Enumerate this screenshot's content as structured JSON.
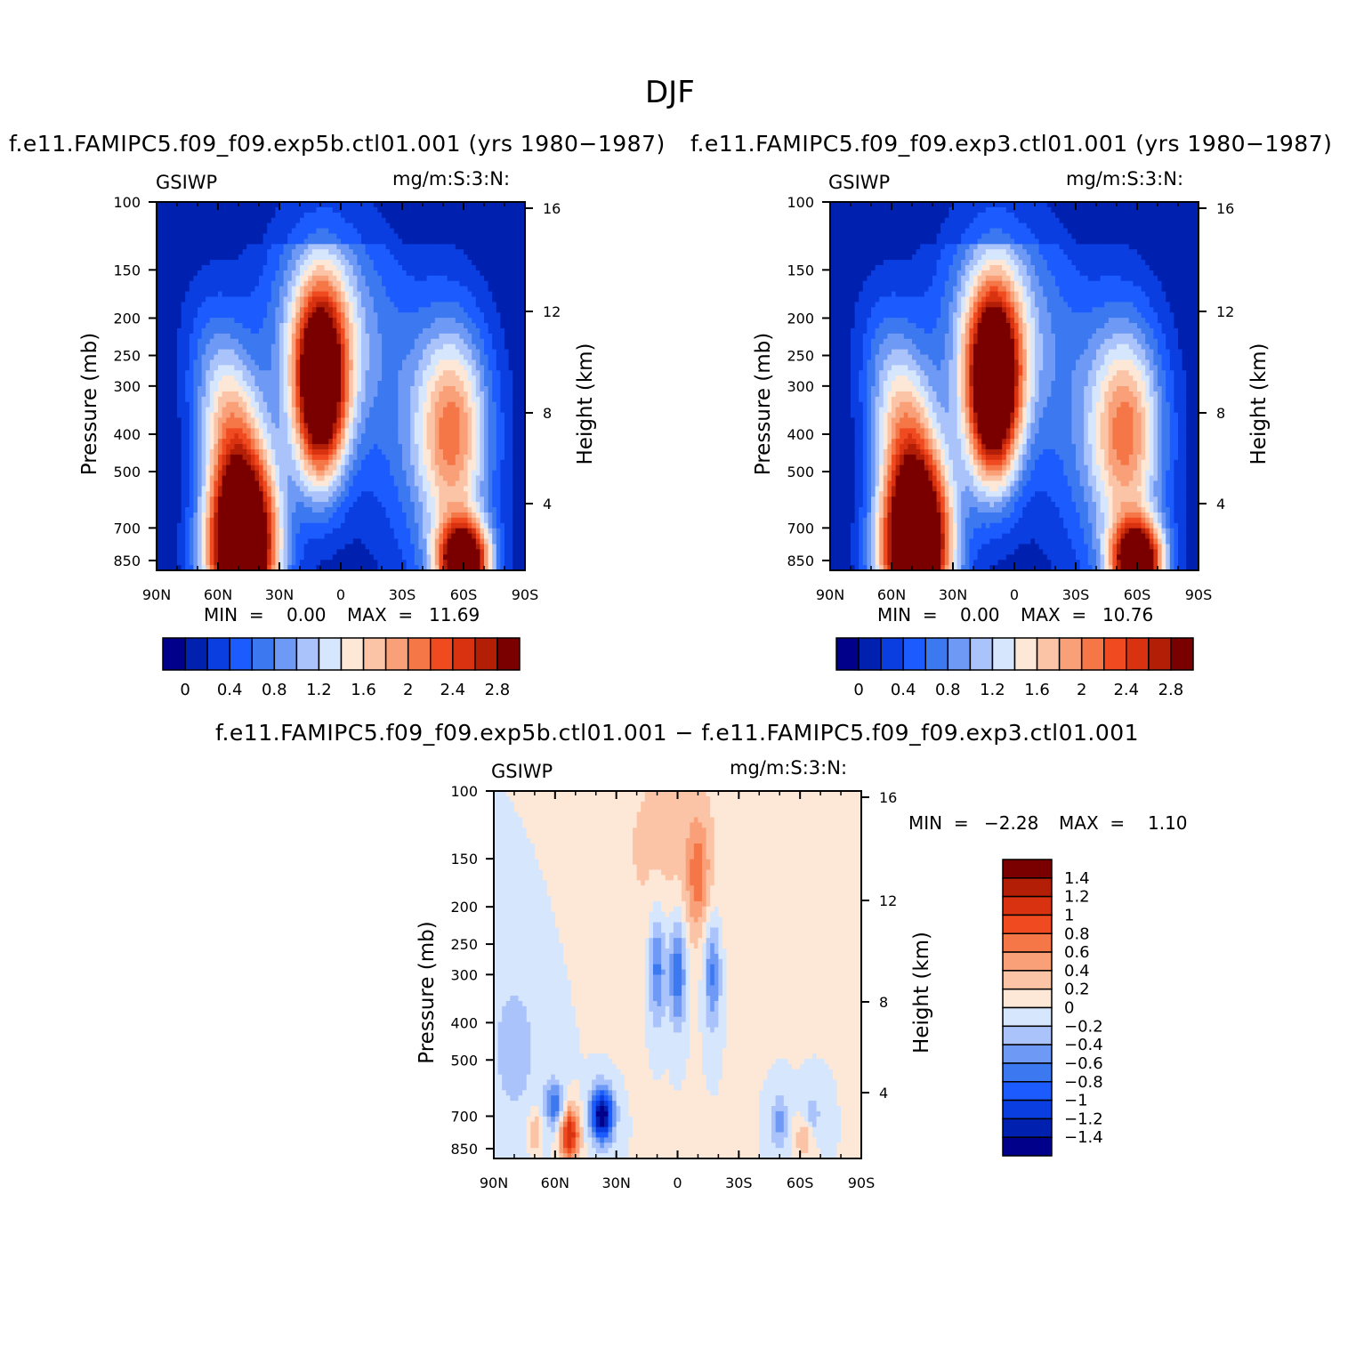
{
  "figure": {
    "title": "DJF",
    "diff_title": "f.e11.FAMIPC5.f09_f09.exp5b.ctl01.001  −  f.e11.FAMIPC5.f09_f09.exp3.ctl01.001"
  },
  "panels": [
    {
      "id": "exp5b",
      "subtitle": "f.e11.FAMIPC5.f09_f09.exp5b.ctl01.001  (yrs  1980−1987)",
      "left_label": "GSIWP",
      "right_label": "mg/m:S:3:N:",
      "min_label": "MIN  =",
      "min_value": "0.00",
      "max_label": "MAX  =",
      "max_value": "11.69"
    },
    {
      "id": "exp3",
      "subtitle": "f.e11.FAMIPC5.f09_f09.exp3.ctl01.001  (yrs  1980−1987)",
      "left_label": "GSIWP",
      "right_label": "mg/m:S:3:N:",
      "min_label": "MIN  =",
      "min_value": "0.00",
      "max_label": "MAX  =",
      "max_value": "10.76"
    },
    {
      "id": "diff",
      "subtitle": "",
      "left_label": "GSIWP",
      "right_label": "mg/m:S:3:N:",
      "min_label": "MIN  =",
      "min_value": "−2.28",
      "max_label": "MAX  =",
      "max_value": "1.10"
    }
  ],
  "axes": {
    "x_ticks": [
      "90N",
      "60N",
      "30N",
      "0",
      "30S",
      "60S",
      "90S"
    ],
    "y_ticks": [
      "100",
      "150",
      "200",
      "250",
      "300",
      "400",
      "500",
      "700",
      "850"
    ],
    "y_label": "Pressure  (mb)",
    "y2_ticks": [
      "16",
      "12",
      "8",
      "4"
    ],
    "y2_label": "Height  (km)"
  },
  "colorbars": {
    "main_labels": [
      "0",
      "0.4",
      "0.8",
      "1.2",
      "1.6",
      "2",
      "2.4",
      "2.8"
    ],
    "main_colors": [
      "#00008b",
      "#0021b0",
      "#0a3ee0",
      "#1c5cff",
      "#3c78f0",
      "#6e9af5",
      "#aac3fa",
      "#d6e6fc",
      "#fde8d8",
      "#fcc4a6",
      "#f9a078",
      "#f57748",
      "#f04a20",
      "#d93210",
      "#b21e06",
      "#7a0000"
    ],
    "diff_labels": [
      "1.4",
      "1.2",
      "1",
      "0.8",
      "0.6",
      "0.4",
      "0.2",
      "0",
      "−0.2",
      "−0.4",
      "−0.6",
      "−0.8",
      "−1",
      "−1.2",
      "−1.4"
    ],
    "diff_colors": [
      "#7a0000",
      "#b21e06",
      "#d93210",
      "#f04a20",
      "#f57748",
      "#f9a078",
      "#fcc4a6",
      "#fde8d8",
      "#d6e6fc",
      "#aac3fa",
      "#6e9af5",
      "#3c78f0",
      "#1c5cff",
      "#0a3ee0",
      "#0021b0",
      "#00008b"
    ]
  },
  "chart_data": [
    {
      "type": "heatmap",
      "title": "f.e11.FAMIPC5.f09_f09.exp5b.ctl01.001  (yrs  1980−1987)",
      "xlabel": "",
      "ylabel": "Pressure  (mb)",
      "y2label": "Height  (km)",
      "x_range": [
        "90N",
        "90S"
      ],
      "ylim": [
        1000,
        100
      ],
      "y_scale": "log",
      "features": [
        {
          "lat": 10,
          "p_top": 190,
          "p_bottom": 540,
          "value": 2.9
        },
        {
          "lat": 55,
          "p_top": 400,
          "p_bottom": 1000,
          "value": 2.9
        },
        {
          "lat": -60,
          "p_top": 780,
          "p_bottom": 1000,
          "value": 2.9
        },
        {
          "lat": -55,
          "p_top": 330,
          "p_bottom": 480,
          "value": 1.6
        }
      ],
      "min": 0.0,
      "max": 11.69
    },
    {
      "type": "heatmap",
      "title": "f.e11.FAMIPC5.f09_f09.exp3.ctl01.001  (yrs  1980−1987)",
      "xlabel": "",
      "ylabel": "Pressure  (mb)",
      "y2label": "Height  (km)",
      "x_range": [
        "90N",
        "90S"
      ],
      "ylim": [
        1000,
        100
      ],
      "y_scale": "log",
      "features": [
        {
          "lat": 10,
          "p_top": 190,
          "p_bottom": 540,
          "value": 2.9
        },
        {
          "lat": 55,
          "p_top": 380,
          "p_bottom": 1000,
          "value": 2.9
        },
        {
          "lat": -60,
          "p_top": 780,
          "p_bottom": 1000,
          "value": 2.9
        },
        {
          "lat": -55,
          "p_top": 330,
          "p_bottom": 480,
          "value": 1.5
        }
      ],
      "min": 0.0,
      "max": 10.76
    },
    {
      "type": "heatmap",
      "title": "f.e11.FAMIPC5.f09_f09.exp5b.ctl01.001  −  f.e11.FAMIPC5.f09_f09.exp3.ctl01.001",
      "xlabel": "",
      "ylabel": "Pressure  (mb)",
      "y2label": "Height  (km)",
      "x_range": [
        "90N",
        "90S"
      ],
      "ylim": [
        1000,
        100
      ],
      "y_scale": "log",
      "features": [
        {
          "lat": 40,
          "p": 780,
          "value": -1.4
        },
        {
          "lat": 55,
          "p": 870,
          "value": 1.0
        },
        {
          "lat": 10,
          "p": 300,
          "value": -0.8
        },
        {
          "lat": -10,
          "p": 150,
          "value": 0.6
        }
      ],
      "min": -2.28,
      "max": 1.1
    }
  ]
}
